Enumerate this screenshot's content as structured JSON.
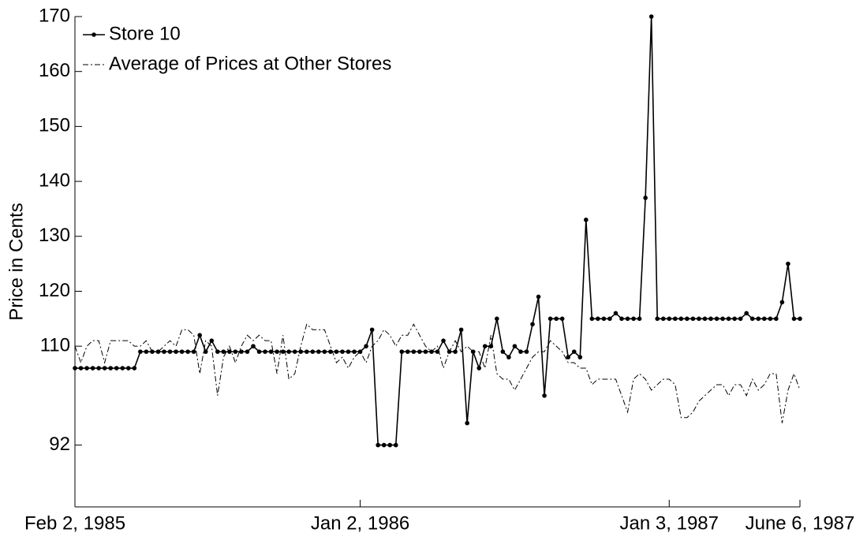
{
  "chart_data": {
    "type": "line",
    "ylabel": "Price in Cents",
    "x": [
      0,
      1,
      2,
      3,
      4,
      5,
      6,
      7,
      8,
      9,
      10,
      11,
      12,
      13,
      14,
      15,
      16,
      17,
      18,
      19,
      20,
      21,
      22,
      23,
      24,
      25,
      26,
      27,
      28,
      29,
      30,
      31,
      32,
      33,
      34,
      35,
      36,
      37,
      38,
      39,
      40,
      41,
      42,
      43,
      44,
      45,
      46,
      47,
      48,
      49,
      50,
      51,
      52,
      53,
      54,
      55,
      56,
      57,
      58,
      59,
      60,
      61,
      62,
      63,
      64,
      65,
      66,
      67,
      68,
      69,
      70,
      71,
      72,
      73,
      74,
      75,
      76,
      77,
      78,
      79,
      80,
      81,
      82,
      83,
      84,
      85,
      86,
      87,
      88,
      89,
      90,
      91,
      92,
      93,
      94,
      95,
      96,
      97,
      98,
      99,
      100,
      101,
      102,
      103,
      104,
      105,
      106,
      107,
      108,
      109,
      110,
      111,
      112,
      113,
      114,
      115,
      116,
      117,
      118,
      119,
      120,
      121,
      122
    ],
    "series": [
      {
        "name": "Store 10",
        "color": "#000000",
        "style": "solid-marker",
        "values": [
          106,
          106,
          106,
          106,
          106,
          106,
          106,
          106,
          106,
          106,
          106,
          109,
          109,
          109,
          109,
          109,
          109,
          109,
          109,
          109,
          109,
          112,
          109,
          111,
          109,
          109,
          109,
          109,
          109,
          109,
          110,
          109,
          109,
          109,
          109,
          109,
          109,
          109,
          109,
          109,
          109,
          109,
          109,
          109,
          109,
          109,
          109,
          109,
          109,
          110,
          113,
          92,
          92,
          92,
          92,
          109,
          109,
          109,
          109,
          109,
          109,
          109,
          111,
          109,
          109,
          113,
          96,
          109,
          106,
          110,
          110,
          115,
          109,
          108,
          110,
          109,
          109,
          114,
          119,
          101,
          115,
          115,
          115,
          108,
          109,
          108,
          133,
          115,
          115,
          115,
          115,
          116,
          115,
          115,
          115,
          115,
          137,
          170,
          115,
          115,
          115,
          115,
          115,
          115,
          115,
          115,
          115,
          115,
          115,
          115,
          115,
          115,
          115,
          116,
          115,
          115,
          115,
          115,
          115,
          118,
          125,
          115,
          115
        ]
      },
      {
        "name": "Average of Prices at Other Stores",
        "color": "#000000",
        "style": "dash-dot",
        "values": [
          110,
          107,
          110,
          111,
          111,
          107,
          111,
          111,
          111,
          111,
          110,
          110,
          111,
          109,
          109,
          110,
          111,
          110,
          113,
          113,
          112,
          105,
          111,
          110,
          101,
          108,
          110,
          107,
          110,
          112,
          111,
          112,
          111,
          111,
          105,
          112,
          104,
          105,
          110,
          114,
          113,
          113,
          113,
          110,
          107,
          108,
          106,
          108,
          109,
          107,
          110,
          111,
          113,
          112,
          110,
          112,
          112,
          114,
          112,
          110,
          109,
          110,
          106,
          109,
          111,
          109,
          110,
          109,
          109,
          106,
          112,
          105,
          104,
          104,
          102,
          104,
          106,
          108,
          109,
          109,
          111,
          110,
          109,
          107,
          107,
          106,
          106,
          103,
          104,
          104,
          104,
          104,
          101,
          98,
          104,
          105,
          104,
          102,
          103,
          104,
          104,
          103,
          97,
          97,
          98,
          100,
          101,
          102,
          103,
          103,
          101,
          103,
          103,
          101,
          104,
          102,
          103,
          105,
          105,
          96,
          102,
          105,
          102
        ]
      }
    ],
    "xlim": [
      0,
      122
    ],
    "xticks": [
      {
        "value": 0,
        "label": "Feb 2, 1985"
      },
      {
        "value": 48,
        "label": "Jan 2, 1986"
      },
      {
        "value": 100,
        "label": "Jan 3, 1987"
      },
      {
        "value": 122,
        "label": "June 6, 1987"
      }
    ],
    "ylim": [
      80.75,
      170
    ],
    "yticks": [
      92,
      110,
      120,
      130,
      140,
      150,
      160,
      170
    ],
    "legend": "top-left"
  }
}
